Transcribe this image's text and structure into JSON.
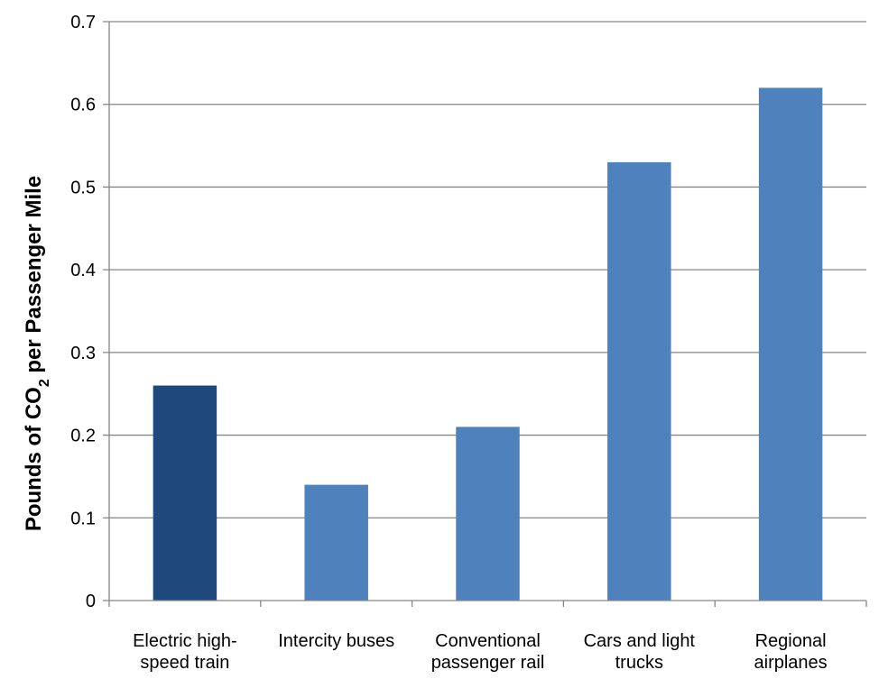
{
  "chart_data": {
    "type": "bar",
    "categories": [
      [
        "Electric high-",
        "speed train"
      ],
      [
        "Intercity buses"
      ],
      [
        "Conventional",
        "passenger rail"
      ],
      [
        "Cars and light",
        "trucks"
      ],
      [
        "Regional",
        "airplanes"
      ]
    ],
    "values": [
      0.26,
      0.14,
      0.21,
      0.53,
      0.62
    ],
    "colors": [
      "#1f497d",
      "#4f81bd",
      "#4f81bd",
      "#4f81bd",
      "#4f81bd"
    ],
    "ylabel": {
      "prefix": "Pounds of CO",
      "subscript": "2",
      "suffix": " per Passenger Mile"
    },
    "ylim": [
      0,
      0.7
    ],
    "yticks": [
      "0",
      "0.1",
      "0.2",
      "0.3",
      "0.4",
      "0.5",
      "0.6",
      "0.7"
    ],
    "grid": true,
    "legend": "none"
  }
}
